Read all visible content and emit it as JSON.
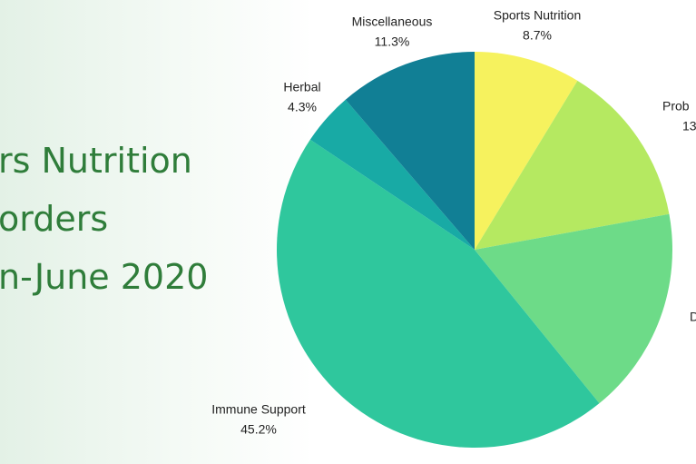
{
  "chart_data": {
    "type": "pie",
    "title_lines": [
      "rs Nutrition",
      "orders",
      "n-June 2020"
    ],
    "categories": [
      "Sports Nutrition",
      "Prob",
      "D",
      "Immune Support",
      "Herbal",
      "Miscellaneous"
    ],
    "values": [
      8.7,
      13.4,
      17.0,
      45.2,
      4.3,
      11.3
    ],
    "value_labels": [
      "8.7%",
      "13",
      null,
      "45.2%",
      "4.3%",
      "11.3%"
    ],
    "colors": [
      "#f6f25e",
      "#b5e961",
      "#6ddb88",
      "#2fc79d",
      "#18aaa5",
      "#117f95"
    ]
  }
}
